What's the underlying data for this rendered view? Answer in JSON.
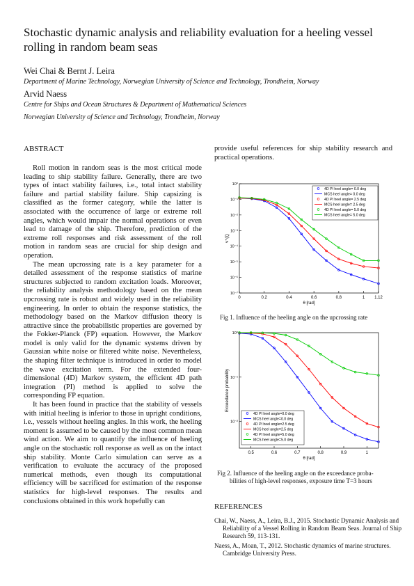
{
  "title": "Stochastic dynamic analysis and reliability evaluation for a heeling vessel rolling in random beam seas",
  "authors1": "Wei Chai & Bernt J. Leira",
  "affil1": "Department of Marine Technology, Norwegian University of Science and Technology, Trondheim, Norway",
  "authors2": "Arvid Naess",
  "affil2a": "Centre for Ships and Ocean Structures & Department of Mathematical Sciences",
  "affil2b": "Norwegian University of Science and Technology, Trondheim, Norway",
  "abstract_heading": "ABSTRACT",
  "abstract_paragraphs": [
    "Roll motion in random seas is the most critical mode leading to ship stability failure. Generally, there are two types of intact stability failures, i.e., total intact stability failure and partial stability failure. Ship capsizing is classified as the former category, while the latter is associated with the occurrence of large or extreme roll angles, which would impair the normal operations or even lead to damage of the ship. Therefore, prediction of the extreme roll responses and risk assessment of the roll motion in random seas are crucial for ship design and operation.",
    "The mean upcrossing rate is a key parameter for a detailed assessment of the response statistics of marine structures subjected to random excitation loads. Moreover, the reliability analysis methodology based on the mean upcrossing rate is robust and widely used in the reliability engineering. In order to obtain the response statistics, the methodology based on the Markov diffusion theory is attractive since the probabilistic properties are governed by the Fokker-Planck (FP) equation. However, the Markov model is only valid for the dynamic systems driven by Gaussian white noise or filtered white noise. Nevertheless, the shaping filter technique is introduced in order to model the wave excitation term. For the extended four-dimensional (4D) Markov system, the efficient 4D path integration (PI) method is applied to solve the corresponding FP equation.",
    "It has been found in practice that the stability of vessels with initial heeling is inferior to those in upright conditions, i.e., vessels without heeling angles. In this work, the heeling moment is assumed to be caused by the most common mean wind action. We aim to quantify the influence of heeling angle on the stochastic roll response as well as on the intact ship stability. Monte Carlo simulation can serve as a verification to evaluate the accuracy of the proposed numerical methods, even though its computational efficiency will be sacrificed for estimation of the response statistics for high-level responses. The results and conclusions obtained in this work hopefully can"
  ],
  "right_intro": "provide useful references for ship stability research and practical operations.",
  "fig1_caption": "Fig 1. Influence of the heeling angle on the upcrossing rate",
  "fig2_caption_1": "Fig 2. Influence of the heeling angle on the exceedance proba-",
  "fig2_caption_2": "bilities of high-level responses, exposure time T=3 hours",
  "references_heading": "REFERENCES",
  "references": [
    "Chai, W., Naess, A., Leira, B.J., 2015. Stochastic Dynamic Analysis and Reliability of a Vessel Rolling in Random Beam Seas. Journal of Ship Research 59, 113-131.",
    "Naess, A., Moan, T., 2012. Stochastic dynamics of marine structures. Cambridge University Press."
  ],
  "chart_data": [
    {
      "type": "line",
      "title": "",
      "xlabel": "θ [rad]",
      "ylabel": "v⁺(ζ)",
      "xlim": [
        0,
        1.12
      ],
      "ylim_log10": [
        -7,
        0
      ],
      "xticks": [
        "0",
        "0.2",
        "0.4",
        "0.6",
        "0.8",
        "1",
        "1.12"
      ],
      "yticks": [
        "10⁰",
        "10⁻¹",
        "10⁻²",
        "10⁻³",
        "10⁻⁴",
        "10⁻⁵",
        "10⁻⁶",
        "10⁻⁷"
      ],
      "legend_position": "top-right",
      "x": [
        0,
        0.1,
        0.2,
        0.3,
        0.4,
        0.5,
        0.6,
        0.7,
        0.8,
        0.9,
        1.0,
        1.12
      ],
      "series": [
        {
          "name": "4D PI heel angle= 0.0 deg",
          "color": "#0000ff",
          "style": "markers",
          "values": [
            0.12,
            0.11,
            0.08,
            0.03,
            0.006,
            0.0006,
            6e-05,
            1.2e-05,
            3e-06,
            1.5e-06,
            8e-07,
            4e-07
          ]
        },
        {
          "name": "MCS   heel angle= 0.0 deg",
          "color": "#0000ff",
          "style": "line",
          "values": [
            0.12,
            0.11,
            0.08,
            0.03,
            0.006,
            0.0006,
            6e-05,
            1.2e-05,
            3e-06,
            1.5e-06,
            8e-07,
            4e-07
          ]
        },
        {
          "name": "4D PI heel angle= 2.5 deg",
          "color": "#ff0000",
          "style": "markers",
          "values": [
            0.12,
            0.115,
            0.09,
            0.045,
            0.012,
            0.002,
            0.0003,
            5e-05,
            1.5e-05,
            8e-06,
            5e-06,
            4e-06
          ]
        },
        {
          "name": "MCS   heel angle= 2.5 deg",
          "color": "#ff0000",
          "style": "line",
          "values": [
            0.12,
            0.115,
            0.09,
            0.045,
            0.012,
            0.002,
            0.0003,
            5e-05,
            1.5e-05,
            8e-06,
            5e-06,
            4e-06
          ]
        },
        {
          "name": "4D PI heel angle= 5.0 deg",
          "color": "#00cc00",
          "style": "markers",
          "values": [
            0.13,
            0.12,
            0.1,
            0.06,
            0.025,
            0.005,
            0.0012,
            0.0003,
            8e-05,
            3e-05,
            1.2e-05,
            1.2e-05
          ]
        },
        {
          "name": "MCS   heel angle= 5.0 deg",
          "color": "#00cc00",
          "style": "line",
          "values": [
            0.13,
            0.12,
            0.1,
            0.06,
            0.025,
            0.005,
            0.0012,
            0.0003,
            8e-05,
            3e-05,
            1.2e-05,
            1.2e-05
          ]
        }
      ]
    },
    {
      "type": "line",
      "title": "",
      "xlabel": "θ [rad]",
      "ylabel": "Exceedance probability",
      "xlim": [
        0.45,
        1.05
      ],
      "ylim_log10": [
        -2.6,
        0
      ],
      "xticks": [
        "0.5",
        "0.6",
        "0.7",
        "0.8",
        "0.9",
        "1"
      ],
      "yticks": [
        "10⁰",
        "10⁻¹",
        "10⁻²"
      ],
      "legend_position": "bottom-left",
      "x": [
        0.45,
        0.5,
        0.55,
        0.6,
        0.65,
        0.7,
        0.75,
        0.8,
        0.85,
        0.9,
        0.95,
        1.0,
        1.05
      ],
      "series": [
        {
          "name": "4D PI heel angle=0.0 deg",
          "color": "#0000ff",
          "style": "markers",
          "values": [
            0.97,
            0.93,
            0.75,
            0.45,
            0.22,
            0.1,
            0.045,
            0.02,
            0.01,
            0.007,
            0.005,
            0.004,
            0.0035
          ]
        },
        {
          "name": "MCS  heel angle=0.0 deg",
          "color": "#0000ff",
          "style": "line",
          "values": [
            0.97,
            0.93,
            0.75,
            0.45,
            0.22,
            0.1,
            0.045,
            0.02,
            0.01,
            0.007,
            0.005,
            0.004,
            0.0035
          ]
        },
        {
          "name": "4D PI heel angle=2.5 deg",
          "color": "#ff0000",
          "style": "markers",
          "values": [
            0.99,
            0.98,
            0.94,
            0.8,
            0.55,
            0.3,
            0.15,
            0.07,
            0.035,
            0.02,
            0.013,
            0.009,
            0.0075
          ]
        },
        {
          "name": "MCS  heel angle=2.5 deg",
          "color": "#ff0000",
          "style": "line",
          "values": [
            0.99,
            0.98,
            0.94,
            0.8,
            0.55,
            0.3,
            0.15,
            0.07,
            0.035,
            0.02,
            0.013,
            0.009,
            0.0075
          ]
        },
        {
          "name": "4D PI heel angle=5.0 deg",
          "color": "#00cc00",
          "style": "markers",
          "values": [
            1.0,
            1.0,
            0.99,
            0.96,
            0.88,
            0.7,
            0.5,
            0.33,
            0.22,
            0.16,
            0.13,
            0.12,
            0.11
          ]
        },
        {
          "name": "MCS  heel angle=5.0 deg",
          "color": "#00cc00",
          "style": "line",
          "values": [
            1.0,
            1.0,
            0.99,
            0.96,
            0.88,
            0.7,
            0.5,
            0.33,
            0.22,
            0.16,
            0.13,
            0.12,
            0.11
          ]
        }
      ]
    }
  ]
}
